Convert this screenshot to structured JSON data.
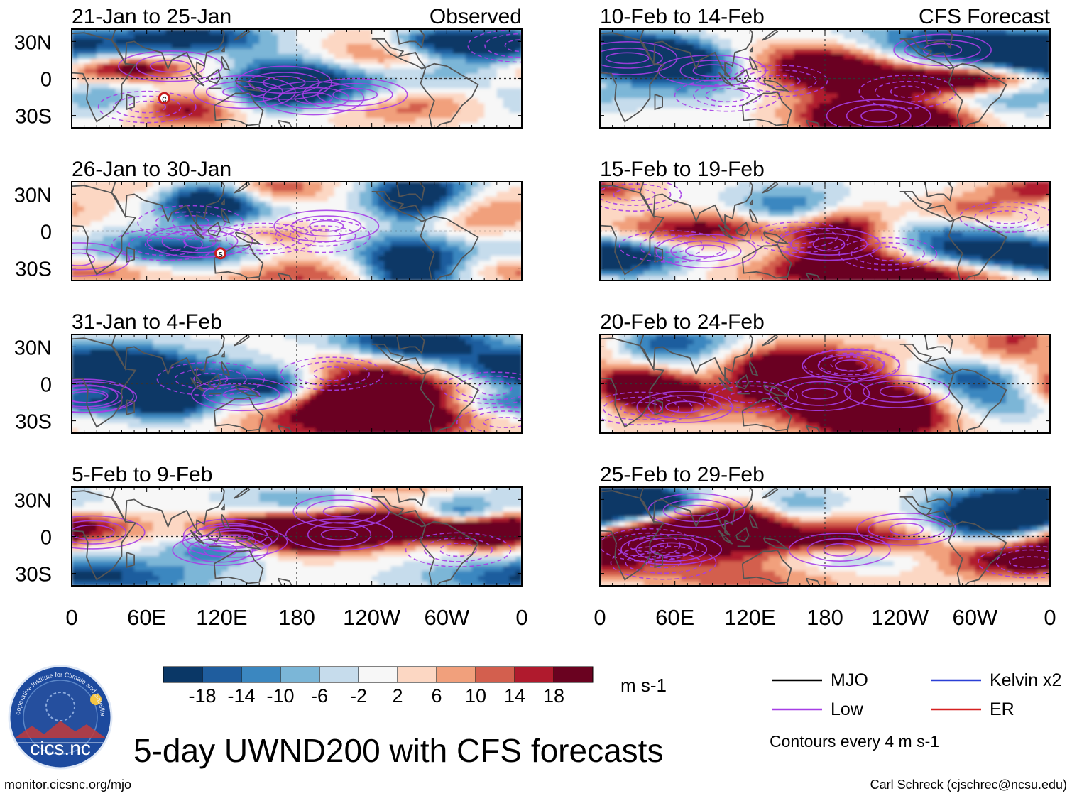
{
  "chart_data": {
    "type": "heatmap",
    "title": "5-day UWND200 with CFS forecasts",
    "variable": "UWND200",
    "units": "m s-1",
    "observed_label": "Observed",
    "forecast_label": "CFS Forecast",
    "xlim": [
      0,
      360
    ],
    "ylim": [
      -40,
      40
    ],
    "x_ticks": [
      "0",
      "60E",
      "120E",
      "180",
      "120W",
      "60W",
      "0"
    ],
    "y_ticks": [
      "30N",
      "0",
      "30S"
    ],
    "panels": [
      {
        "period": "21-Jan to 25-Jan",
        "source": "Observed",
        "storms": [
          "c"
        ]
      },
      {
        "period": "26-Jan to 30-Jan",
        "source": "Observed",
        "storms": [
          "s"
        ]
      },
      {
        "period": "31-Jan to 4-Feb",
        "source": "Observed",
        "storms": []
      },
      {
        "period": "5-Feb to 9-Feb",
        "source": "Observed",
        "storms": []
      },
      {
        "period": "10-Feb to 14-Feb",
        "source": "CFS Forecast",
        "storms": []
      },
      {
        "period": "15-Feb to 19-Feb",
        "source": "CFS Forecast",
        "storms": []
      },
      {
        "period": "20-Feb to 24-Feb",
        "source": "CFS Forecast",
        "storms": []
      },
      {
        "period": "25-Feb to 29-Feb",
        "source": "CFS Forecast",
        "storms": []
      }
    ],
    "colorbar": {
      "labels": [
        "-18",
        "-14",
        "-10",
        "-6",
        "-2",
        "2",
        "6",
        "10",
        "14",
        "18"
      ],
      "colors": [
        "#0a3766",
        "#1f5d9e",
        "#3b87c0",
        "#7bb6d7",
        "#c6dcec",
        "#f7f7f7",
        "#fcd7c3",
        "#f1a07c",
        "#d35f4e",
        "#b01a2d",
        "#6a0220"
      ],
      "units": "m s-1"
    },
    "legend": {
      "entries": [
        {
          "label": "MJO",
          "color": "#000000"
        },
        {
          "label": "Kelvin x2",
          "color": "#2a3fd6"
        },
        {
          "label": "Low",
          "color": "#a63ee6"
        },
        {
          "label": "ER",
          "color": "#d62020"
        }
      ],
      "note": "Contours every 4 m s-1"
    }
  },
  "credits": {
    "logo_text": "cics.nc",
    "logo_ring_text": "Cooperative Institute for Climate and Satellites",
    "url": "monitor.cicsnc.org/mjo",
    "author": "Carl Schreck (cjschrec@ncsu.edu)"
  }
}
